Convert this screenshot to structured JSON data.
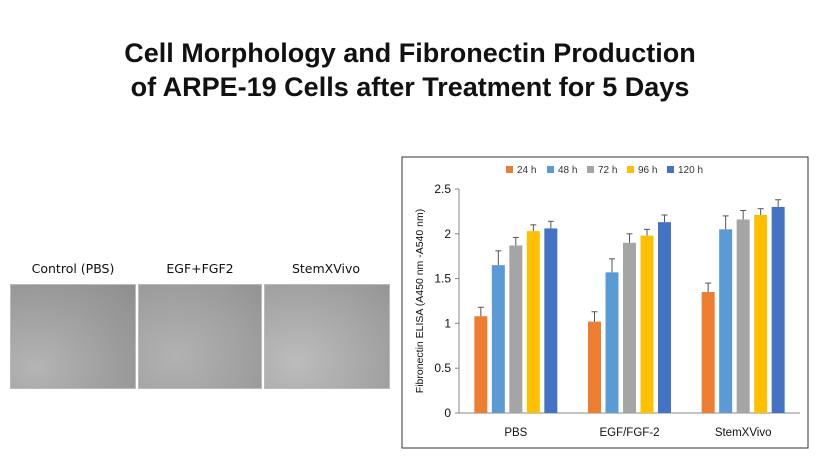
{
  "slide": {
    "title_line1": "Cell Morphology and Fibronectin Production",
    "title_line2": "of ARPE-19 Cells after Treatment for 5 Days"
  },
  "photos": [
    {
      "label": "Control (PBS)"
    },
    {
      "label": "EGF+FGF2"
    },
    {
      "label": "StemXVivo"
    }
  ],
  "chart_data": {
    "type": "bar",
    "title": "",
    "xlabel": "",
    "ylabel": "Fibronectin ELISA (A450 nm -A540 nm)",
    "ylim": [
      0,
      2.5
    ],
    "yticks": [
      "0",
      "0.5",
      "1",
      "1.5",
      "2",
      "2.5"
    ],
    "grid": false,
    "legend_position": "top",
    "categories": [
      "PBS",
      "EGF/FGF-2",
      "StemXVivo"
    ],
    "series": [
      {
        "name": "24 h",
        "color": "#ED7D31",
        "values": [
          1.08,
          1.02,
          1.35
        ],
        "errors": [
          0.1,
          0.11,
          0.1
        ]
      },
      {
        "name": "48 h",
        "color": "#5B9BD5",
        "values": [
          1.65,
          1.57,
          2.05
        ],
        "errors": [
          0.16,
          0.15,
          0.15
        ]
      },
      {
        "name": "72 h",
        "color": "#A5A5A5",
        "values": [
          1.87,
          1.9,
          2.16
        ],
        "errors": [
          0.09,
          0.1,
          0.1
        ]
      },
      {
        "name": "96 h",
        "color": "#FFC000",
        "values": [
          2.03,
          1.98,
          2.21
        ],
        "errors": [
          0.07,
          0.07,
          0.07
        ]
      },
      {
        "name": "120 h",
        "color": "#4472C4",
        "values": [
          2.06,
          2.13,
          2.3
        ],
        "errors": [
          0.08,
          0.08,
          0.08
        ]
      }
    ]
  }
}
